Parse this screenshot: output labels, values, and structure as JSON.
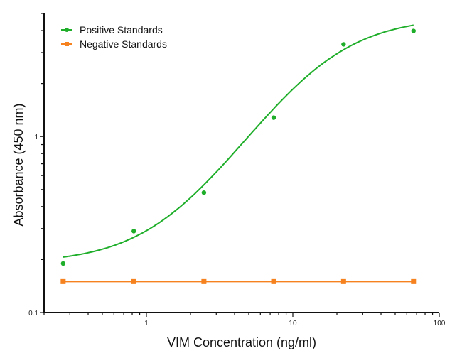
{
  "chart_data": {
    "type": "scatter",
    "title": "",
    "xlabel": "VIM Concentration (ng/ml)",
    "ylabel": "Absorbance (450 nm)",
    "x_scale": "log",
    "y_scale": "log",
    "xlim": [
      0.2,
      100
    ],
    "ylim": [
      0.1,
      5
    ],
    "x_tick_labels": [
      "1",
      "10",
      "100"
    ],
    "y_tick_labels": [
      "0.1",
      "1"
    ],
    "grid": false,
    "legend_position": "top-left",
    "series": [
      {
        "name": "Positive Standards",
        "color": "#1fae2a",
        "marker": "circle",
        "line": "fitted sigmoid curve",
        "x": [
          0.27,
          0.82,
          2.47,
          7.4,
          22.2,
          66.7
        ],
        "y": [
          0.19,
          0.29,
          0.48,
          1.28,
          3.34,
          3.98
        ]
      },
      {
        "name": "Negative Standards",
        "color": "#f5821f",
        "marker": "square",
        "line": "connected",
        "x": [
          0.27,
          0.82,
          2.47,
          7.4,
          22.2,
          66.7
        ],
        "y": [
          0.15,
          0.15,
          0.15,
          0.15,
          0.15,
          0.15
        ]
      }
    ]
  }
}
